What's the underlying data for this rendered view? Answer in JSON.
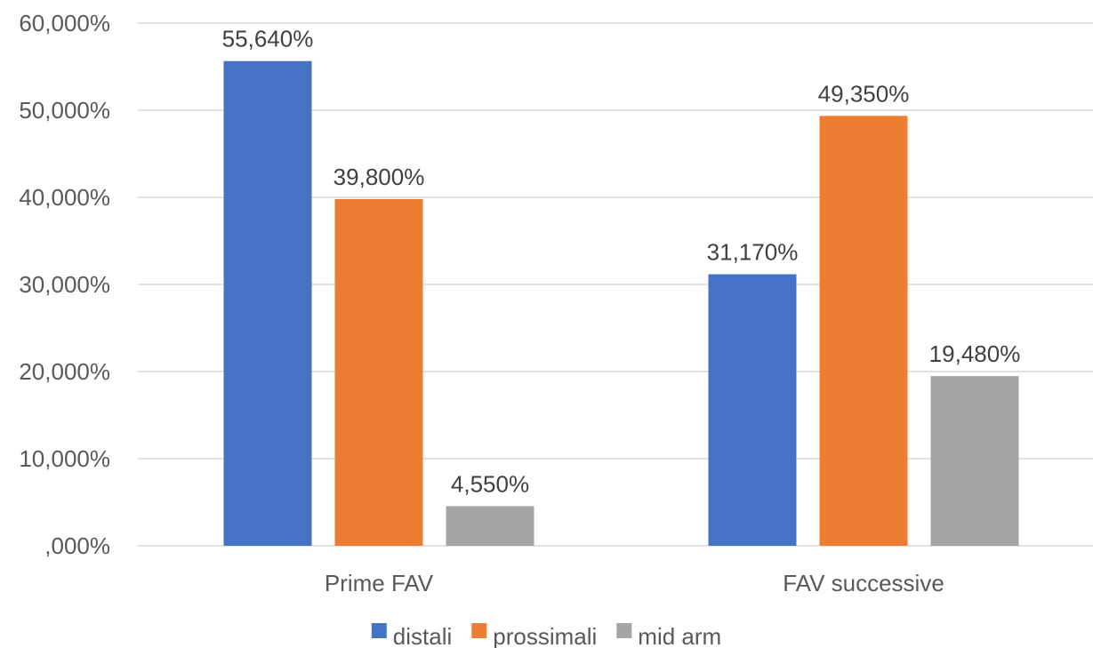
{
  "chart_data": {
    "type": "bar",
    "categories": [
      "Prime FAV",
      "FAV successive"
    ],
    "series": [
      {
        "name": "distali",
        "values": [
          55.64,
          31.17
        ],
        "labels": [
          "55,640%",
          "31,170%"
        ],
        "color": "#4472C4"
      },
      {
        "name": "prossimali",
        "values": [
          39.8,
          49.35
        ],
        "labels": [
          "39,800%",
          "49,350%"
        ],
        "color": "#ED7D31"
      },
      {
        "name": "mid arm",
        "values": [
          4.55,
          19.48
        ],
        "labels": [
          "4,550%",
          "19,480%"
        ],
        "color": "#A5A5A5"
      }
    ],
    "ylim": [
      0,
      60
    ],
    "yticks": [
      0,
      10,
      20,
      30,
      40,
      50,
      60
    ],
    "ytick_labels": [
      ",000%",
      "10,000%",
      "20,000%",
      "30,000%",
      "40,000%",
      "50,000%",
      "60,000%"
    ],
    "grid": true,
    "legend_position": "bottom",
    "title": "",
    "xlabel": "",
    "ylabel": ""
  }
}
